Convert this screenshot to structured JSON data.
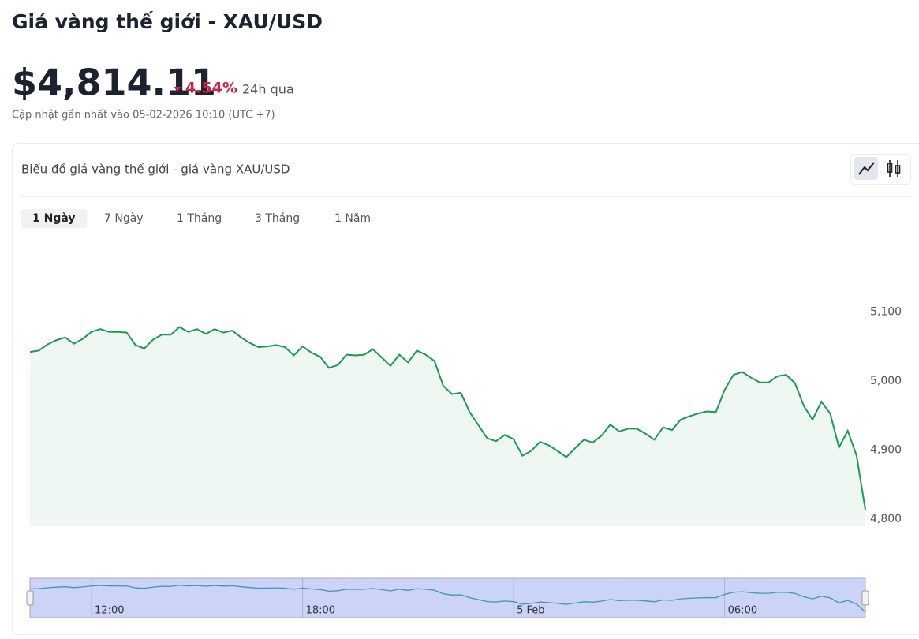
{
  "header": {
    "title": "Giá vàng thế giới - XAU/USD",
    "price": "$4,814.11",
    "change": "4.54%",
    "period": "24h qua",
    "updated": "Cập nhật gần nhất vào 05-02-2026 10:10 (UTC +7)"
  },
  "tabs": [
    "1 Ngày",
    "7 Ngày",
    "1 Tháng",
    "3 Tháng",
    "1 Năm"
  ],
  "active_tab": 0,
  "chart_data": {
    "type": "line",
    "title": "Biểu đồ giá vàng thế giới - giá vàng XAU/USD",
    "color": "#1a9c55",
    "x": [
      10.25,
      10.5,
      10.75,
      11,
      11.25,
      11.5,
      11.75,
      12,
      12.25,
      12.5,
      12.75,
      13,
      13.25,
      13.5,
      13.75,
      14,
      14.25,
      14.5,
      14.75,
      15,
      15.25,
      15.5,
      15.75,
      16,
      16.25,
      16.5,
      16.75,
      17,
      17.25,
      17.5,
      17.75,
      18,
      18.25,
      18.5,
      18.75,
      19,
      19.25,
      19.5,
      19.75,
      20,
      20.25,
      20.5,
      20.75,
      21,
      21.25,
      21.5,
      21.75,
      22,
      22.25,
      22.5,
      22.75,
      23,
      23.25,
      23.5,
      23.75,
      24,
      24.25,
      24.5,
      24.75,
      25,
      25.25,
      25.5,
      25.75,
      26,
      26.25,
      26.5,
      26.75,
      27,
      27.25,
      27.5,
      27.75,
      28,
      28.25,
      28.5,
      28.75,
      29,
      29.25,
      29.5,
      29.75,
      30,
      30.25,
      30.5,
      30.75,
      31,
      31.25,
      31.5,
      31.75,
      32,
      32.25,
      32.5,
      32.75,
      33,
      33.25,
      33.5,
      33.75,
      34
    ],
    "values": [
      5042,
      5044,
      5053,
      5059,
      5063,
      5054,
      5061,
      5071,
      5075,
      5071,
      5071,
      5070,
      5052,
      5047,
      5060,
      5067,
      5067,
      5078,
      5071,
      5075,
      5068,
      5075,
      5070,
      5073,
      5063,
      5055,
      5049,
      5050,
      5052,
      5049,
      5037,
      5050,
      5041,
      5035,
      5019,
      5023,
      5038,
      5037,
      5038,
      5046,
      5034,
      5022,
      5038,
      5027,
      5044,
      5038,
      5029,
      4993,
      4981,
      4983,
      4955,
      4936,
      4917,
      4913,
      4922,
      4916,
      4892,
      4899,
      4912,
      4907,
      4899,
      4890,
      4903,
      4915,
      4911,
      4921,
      4937,
      4927,
      4931,
      4931,
      4924,
      4915,
      4933,
      4929,
      4944,
      4949,
      4953,
      4956,
      4955,
      4987,
      5009,
      5013,
      5005,
      4998,
      4998,
      5007,
      5009,
      4997,
      4964,
      4944,
      4970,
      4953,
      4904,
      4928,
      4892,
      4814
    ],
    "xlim": [
      10.25,
      34
    ],
    "ylim": [
      4790,
      5130
    ],
    "yticks": [
      {
        "value": 4800,
        "label": "4,800"
      },
      {
        "value": 4900,
        "label": "4,900"
      },
      {
        "value": 5000,
        "label": "5,000"
      },
      {
        "value": 5100,
        "label": "5,100"
      }
    ],
    "xticks": [
      {
        "value": 12,
        "label": "12:00"
      },
      {
        "value": 18,
        "label": "18:00"
      },
      {
        "value": 24,
        "label": "5 Feb"
      },
      {
        "value": 30,
        "label": "06:00"
      }
    ]
  }
}
